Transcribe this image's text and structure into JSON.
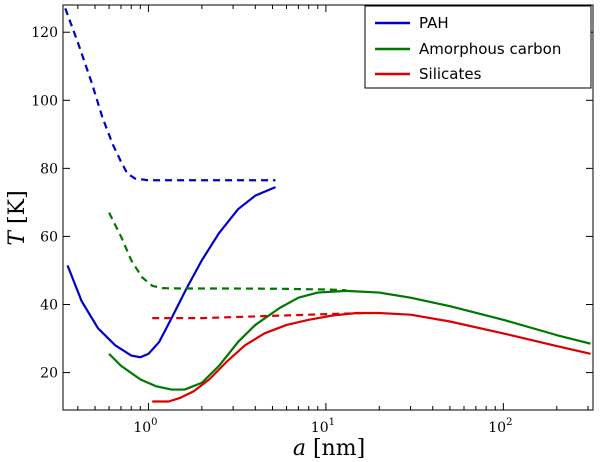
{
  "chart_data": {
    "type": "line",
    "title": "",
    "xlabel_var": "a",
    "xlabel_unit": "[nm]",
    "ylabel_var": "T",
    "ylabel_unit": "[K]",
    "xscale": "log",
    "xlim": [
      0.33,
      320
    ],
    "ylim": [
      9,
      128
    ],
    "x_ticks": [
      {
        "value": 1,
        "base": "10",
        "exp": "0"
      },
      {
        "value": 10,
        "base": "10",
        "exp": "1"
      },
      {
        "value": 100,
        "base": "10",
        "exp": "2"
      }
    ],
    "y_ticks": [
      20,
      40,
      60,
      80,
      100,
      120
    ],
    "legend_position": "top-right",
    "series": [
      {
        "name": "PAH",
        "color": "#0000cc",
        "style": "solid",
        "points": [
          [
            0.35,
            51.5
          ],
          [
            0.42,
            41
          ],
          [
            0.52,
            33
          ],
          [
            0.65,
            28
          ],
          [
            0.8,
            25
          ],
          [
            0.9,
            24.5
          ],
          [
            1.0,
            25.5
          ],
          [
            1.15,
            29
          ],
          [
            1.35,
            36
          ],
          [
            1.65,
            45
          ],
          [
            2.0,
            53
          ],
          [
            2.5,
            61
          ],
          [
            3.2,
            68
          ],
          [
            4.0,
            72
          ],
          [
            5.2,
            74.5
          ]
        ]
      },
      {
        "name": "PAH (dashed)",
        "color": "#0000cc",
        "style": "dashed",
        "points": [
          [
            0.34,
            127
          ],
          [
            0.4,
            117
          ],
          [
            0.48,
            105
          ],
          [
            0.55,
            95
          ],
          [
            0.63,
            87
          ],
          [
            0.7,
            82
          ],
          [
            0.76,
            78.5
          ],
          [
            0.84,
            77
          ],
          [
            1.0,
            76.5
          ],
          [
            2.0,
            76.5
          ],
          [
            5.2,
            76.5
          ]
        ]
      },
      {
        "name": "Amorphous carbon",
        "color": "#007700",
        "style": "solid",
        "points": [
          [
            0.6,
            25.5
          ],
          [
            0.7,
            22
          ],
          [
            0.9,
            18
          ],
          [
            1.1,
            16
          ],
          [
            1.35,
            15
          ],
          [
            1.6,
            15
          ],
          [
            2.0,
            17
          ],
          [
            2.5,
            22
          ],
          [
            3.2,
            29
          ],
          [
            4.0,
            34
          ],
          [
            5.5,
            39
          ],
          [
            7.0,
            42
          ],
          [
            9.0,
            43.5
          ],
          [
            13,
            44
          ],
          [
            20,
            43.5
          ],
          [
            30,
            42
          ],
          [
            50,
            39.5
          ],
          [
            100,
            35.5
          ],
          [
            200,
            31
          ],
          [
            310,
            28.5
          ]
        ]
      },
      {
        "name": "Amorphous carbon (dashed)",
        "color": "#007700",
        "style": "dashed",
        "points": [
          [
            0.6,
            67
          ],
          [
            0.7,
            60
          ],
          [
            0.8,
            53
          ],
          [
            0.92,
            48
          ],
          [
            1.05,
            45.5
          ],
          [
            1.2,
            44.8
          ],
          [
            1.5,
            44.7
          ],
          [
            3,
            44.7
          ],
          [
            6,
            44.6
          ],
          [
            10,
            44.4
          ],
          [
            13,
            44.2
          ]
        ]
      },
      {
        "name": "Silicates",
        "color": "#dd0000",
        "style": "solid",
        "points": [
          [
            1.05,
            11.5
          ],
          [
            1.3,
            11.5
          ],
          [
            1.5,
            12.5
          ],
          [
            1.8,
            14.5
          ],
          [
            2.2,
            18
          ],
          [
            2.8,
            23.5
          ],
          [
            3.5,
            28
          ],
          [
            4.5,
            31.5
          ],
          [
            6,
            34
          ],
          [
            8,
            35.5
          ],
          [
            11,
            36.8
          ],
          [
            15,
            37.5
          ],
          [
            20,
            37.5
          ],
          [
            30,
            37
          ],
          [
            50,
            35
          ],
          [
            100,
            31.5
          ],
          [
            200,
            27.8
          ],
          [
            310,
            25.5
          ]
        ]
      },
      {
        "name": "Silicates (dashed)",
        "color": "#dd0000",
        "style": "dashed",
        "points": [
          [
            1.05,
            36
          ],
          [
            2,
            36
          ],
          [
            4,
            36.5
          ],
          [
            8,
            37
          ],
          [
            12,
            37.3
          ],
          [
            18,
            37.5
          ]
        ]
      }
    ],
    "legend": [
      {
        "label": "PAH",
        "color": "#0000cc"
      },
      {
        "label": "Amorphous carbon",
        "color": "#007700"
      },
      {
        "label": "Silicates",
        "color": "#dd0000"
      }
    ]
  }
}
